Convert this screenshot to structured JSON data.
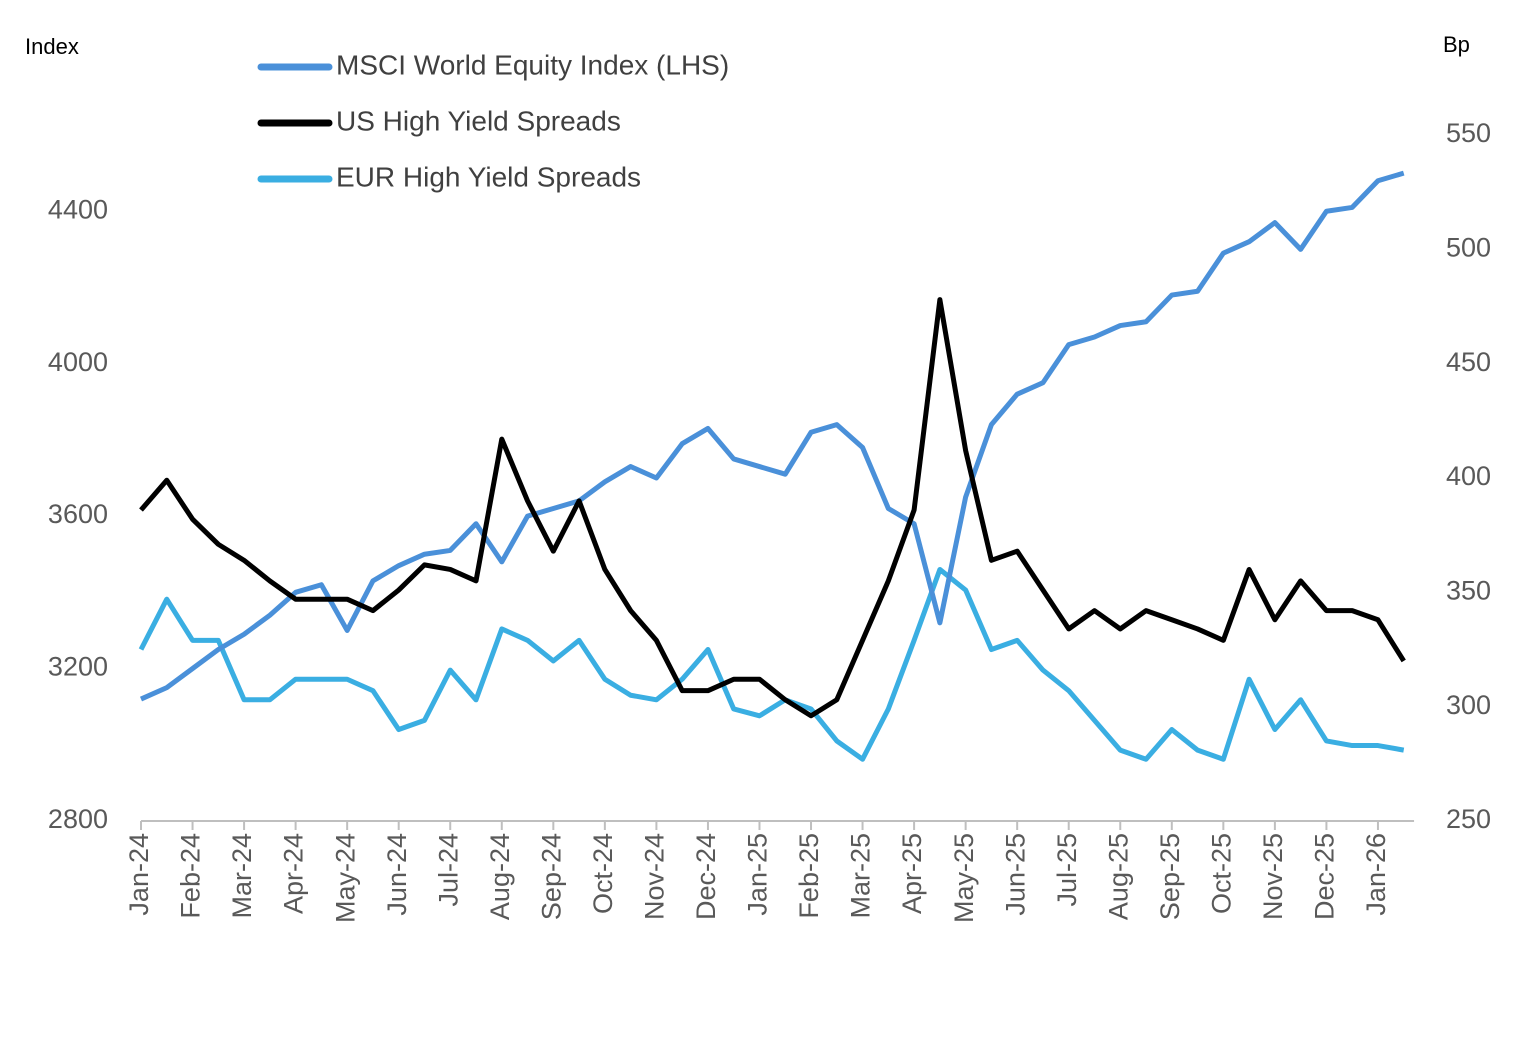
{
  "chart_data": {
    "type": "line",
    "y_label": "Index",
    "y2_label": "Bp",
    "categories": [
      "Jan-24",
      null,
      "Feb-24",
      null,
      "Mar-24",
      null,
      "Apr-24",
      null,
      "May-24",
      null,
      "Jun-24",
      null,
      "Jul-24",
      null,
      "Aug-24",
      null,
      "Sep-24",
      null,
      "Oct-24",
      null,
      "Nov-24",
      null,
      "Dec-24",
      null,
      "Jan-25",
      null,
      "Feb-25",
      null,
      "Mar-25",
      null,
      "Apr-25",
      null,
      "May-25",
      null,
      "Jun-25",
      null,
      "Jul-25",
      null,
      "Aug-25",
      null,
      "Sep-25",
      null,
      "Oct-25",
      null,
      "Nov-25",
      null,
      "Dec-25",
      null,
      "Jan-26",
      null
    ],
    "series": [
      {
        "name": "MSCI World Equity Index (LHS)",
        "color": "#4a90d9",
        "axis": "y",
        "values": [
          3120,
          3150,
          3200,
          3250,
          3290,
          3340,
          3400,
          3420,
          3300,
          3430,
          3470,
          3500,
          3510,
          3580,
          3480,
          3600,
          3620,
          3640,
          3690,
          3730,
          3700,
          3790,
          3830,
          3750,
          3730,
          3710,
          3820,
          3840,
          3780,
          3620,
          3580,
          3320,
          3650,
          3840,
          3920,
          3950,
          4050,
          4070,
          4100,
          4110,
          4180,
          4190,
          4290,
          4320,
          4370,
          4300,
          4400,
          4410,
          4480,
          4500
        ]
      },
      {
        "name": "US High Yield Spreads",
        "color": "#000000",
        "axis": "y2",
        "values": [
          386,
          399,
          382,
          371,
          364,
          355,
          347,
          347,
          347,
          342,
          351,
          362,
          360,
          355,
          417,
          390,
          368,
          390,
          360,
          342,
          329,
          307,
          307,
          312,
          312,
          303,
          296,
          303,
          329,
          355,
          386,
          478,
          412,
          364,
          368,
          351,
          334,
          342,
          334,
          342,
          338,
          334,
          329,
          360,
          338,
          355,
          342,
          342,
          338,
          320
        ]
      },
      {
        "name": "EUR High Yield Spreads",
        "color": "#3aaee2",
        "axis": "y2",
        "values": [
          325,
          347,
          329,
          329,
          303,
          303,
          312,
          312,
          312,
          307,
          290,
          294,
          316,
          303,
          334,
          329,
          320,
          329,
          312,
          305,
          303,
          312,
          325,
          299,
          296,
          303,
          299,
          285,
          277,
          299,
          329,
          360,
          351,
          325,
          329,
          316,
          307,
          294,
          281,
          277,
          290,
          281,
          277,
          312,
          290,
          303,
          285,
          283,
          283,
          281
        ]
      }
    ],
    "ylim": [
      2800,
      4600
    ],
    "yticks": [
      2800,
      3200,
      3600,
      4000,
      4400
    ],
    "y2lim": [
      250,
      550
    ],
    "y2ticks": [
      250,
      300,
      350,
      400,
      450,
      500,
      550
    ]
  }
}
